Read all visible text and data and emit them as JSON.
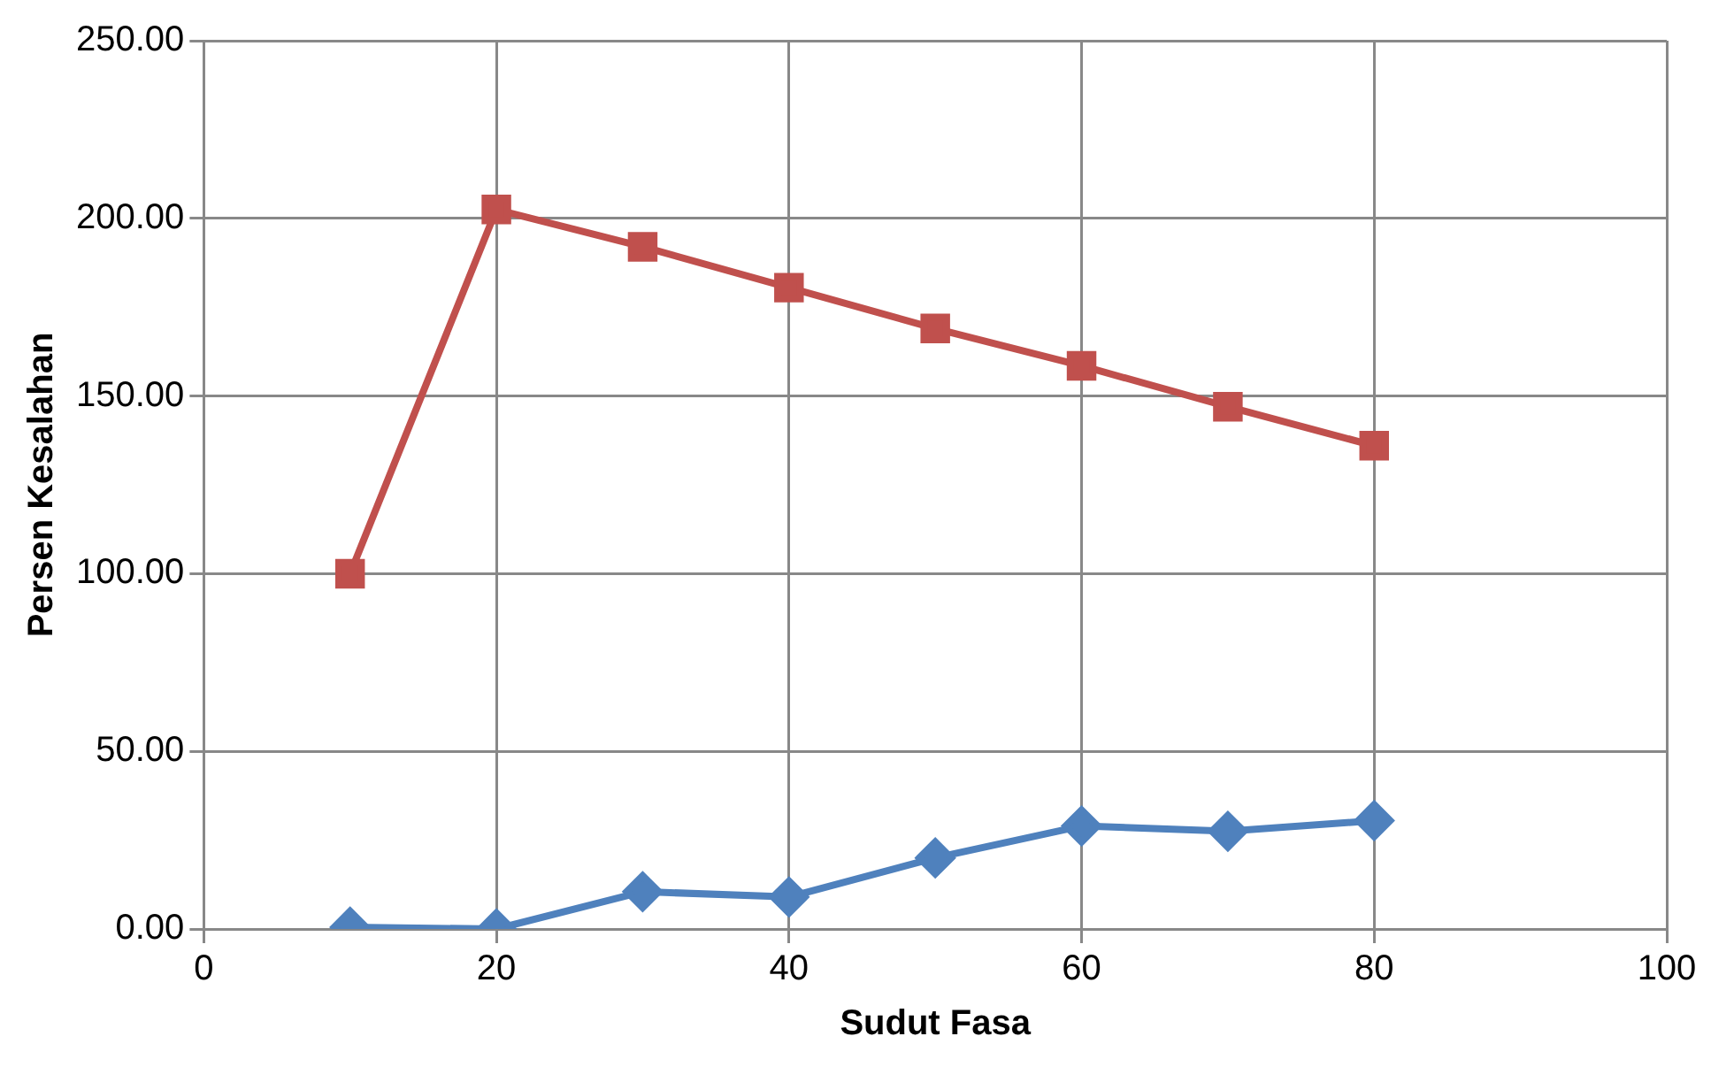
{
  "chart_data": {
    "type": "line",
    "xlabel": "Sudut Fasa",
    "ylabel": "Persen Kesalahan",
    "x": [
      10,
      20,
      30,
      40,
      50,
      60,
      70,
      80
    ],
    "series": [
      {
        "color": "#c0504d",
        "marker": "square",
        "values": [
          100,
          202.5,
          192,
          180.5,
          169,
          158.5,
          147,
          136
        ]
      },
      {
        "color": "#4f81bd",
        "marker": "diamond",
        "values": [
          0.5,
          0,
          10.5,
          9,
          20,
          29,
          27.5,
          30.5
        ]
      }
    ],
    "xlim": [
      0,
      100
    ],
    "xticks": [
      0,
      20,
      40,
      60,
      80,
      100
    ],
    "ylim": [
      0,
      250
    ],
    "yticks": [
      {
        "value": 0,
        "label": "0.00"
      },
      {
        "value": 50,
        "label": "50.00"
      },
      {
        "value": 100,
        "label": "100.00"
      },
      {
        "value": 150,
        "label": "150.00"
      },
      {
        "value": 200,
        "label": "200.00"
      },
      {
        "value": 250,
        "label": "250.00"
      }
    ],
    "grid": true,
    "legend": false
  }
}
